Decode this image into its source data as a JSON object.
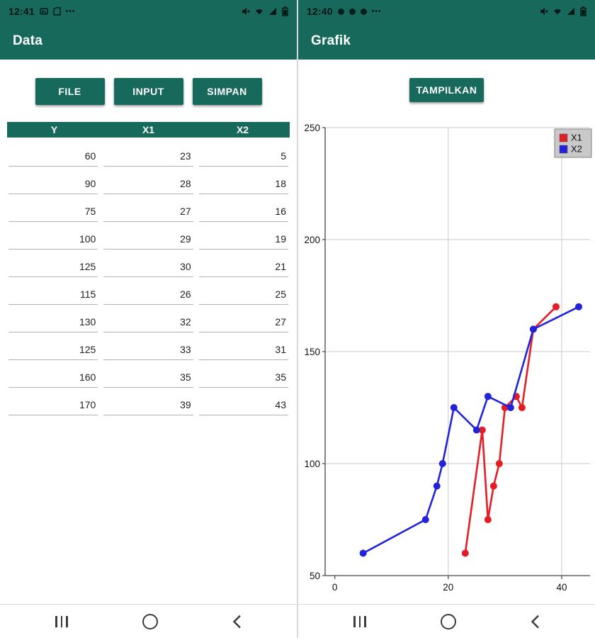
{
  "colors": {
    "primary_teal": "#17695c",
    "series_x1_red": "#e51c23",
    "series_x2_blue": "#2222dd",
    "legend_bg": "#c9c9c9",
    "grid_gray": "#c9c9c9"
  },
  "left": {
    "status": {
      "time": "12:41",
      "left_icons": [
        "screenshot-icon",
        "sim-icon",
        "more-notifications-icon"
      ],
      "right_icons": [
        "mute-icon",
        "wifi-icon",
        "signal-icon",
        "battery-icon"
      ]
    },
    "title": "Data",
    "buttons": [
      {
        "label": "FILE"
      },
      {
        "label": "INPUT"
      },
      {
        "label": "SIMPAN"
      }
    ],
    "table": {
      "columns": [
        "Y",
        "X1",
        "X2"
      ],
      "rows": [
        [
          "60",
          "23",
          "5"
        ],
        [
          "90",
          "28",
          "18"
        ],
        [
          "75",
          "27",
          "16"
        ],
        [
          "100",
          "29",
          "19"
        ],
        [
          "125",
          "30",
          "21"
        ],
        [
          "115",
          "26",
          "25"
        ],
        [
          "130",
          "32",
          "27"
        ],
        [
          "125",
          "33",
          "31"
        ],
        [
          "160",
          "35",
          "35"
        ],
        [
          "170",
          "39",
          "43"
        ]
      ]
    },
    "nav_icons": [
      "recents-icon",
      "home-icon",
      "back-icon"
    ]
  },
  "right": {
    "status": {
      "time": "12:40",
      "left_icons": [
        "notification-icon",
        "notification-icon",
        "notification-icon",
        "more-notifications-icon"
      ],
      "right_icons": [
        "mute-icon",
        "wifi-icon",
        "signal-icon",
        "battery-icon"
      ]
    },
    "title": "Grafik",
    "show_button": "TAMPILKAN",
    "nav_icons": [
      "recents-icon",
      "home-icon",
      "back-icon"
    ]
  },
  "chart_data": {
    "type": "line",
    "title": "",
    "xlabel": "",
    "ylabel": "",
    "grid": true,
    "legend": {
      "position": "top-right",
      "entries": [
        "X1",
        "X2"
      ]
    },
    "x_axis": {
      "min": -1.7,
      "max": 45,
      "ticks": [
        0,
        20,
        40
      ]
    },
    "y_axis": {
      "min": 50,
      "max": 250,
      "ticks": [
        50,
        100,
        150,
        200,
        250
      ]
    },
    "series": [
      {
        "name": "X1",
        "color": "#e51c23",
        "points": [
          [
            23,
            60
          ],
          [
            26,
            115
          ],
          [
            27,
            75
          ],
          [
            28,
            90
          ],
          [
            29,
            100
          ],
          [
            30,
            125
          ],
          [
            32,
            130
          ],
          [
            33,
            125
          ],
          [
            35,
            160
          ],
          [
            39,
            170
          ]
        ]
      },
      {
        "name": "X2",
        "color": "#2222dd",
        "points": [
          [
            5,
            60
          ],
          [
            16,
            75
          ],
          [
            18,
            90
          ],
          [
            19,
            100
          ],
          [
            21,
            125
          ],
          [
            25,
            115
          ],
          [
            27,
            130
          ],
          [
            31,
            125
          ],
          [
            35,
            160
          ],
          [
            43,
            170
          ]
        ]
      }
    ]
  }
}
